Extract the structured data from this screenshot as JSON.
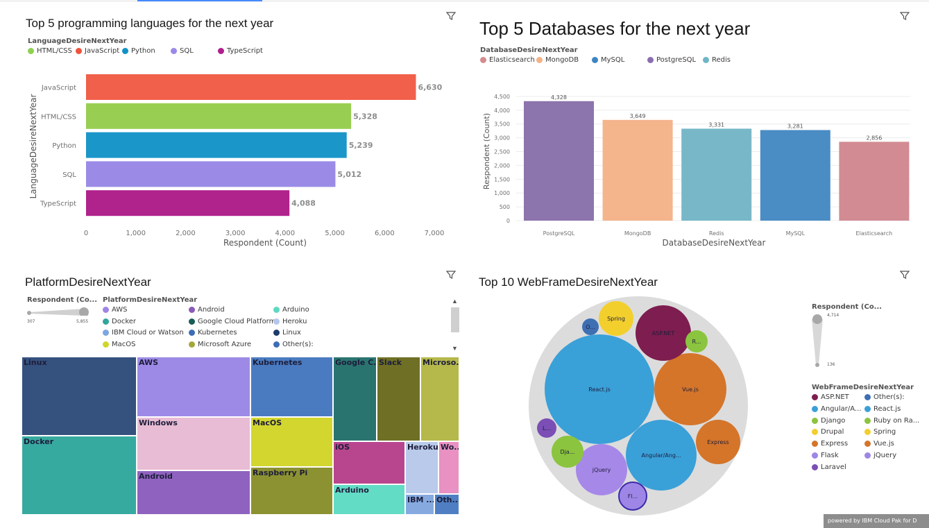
{
  "lang_chart": {
    "title": "Top 5 programming languages for the next year",
    "legend_title": "LanguageDesireNextYear",
    "legend": [
      {
        "label": "HTML/CSS",
        "color": "#8fd14f"
      },
      {
        "label": "JavaScript",
        "color": "#f0523c"
      },
      {
        "label": "Python",
        "color": "#1192c6"
      },
      {
        "label": "SQL",
        "color": "#9b88e8"
      },
      {
        "label": "TypeScript",
        "color": "#b01e8c"
      }
    ]
  },
  "db_chart": {
    "title": "Top 5 Databases for the next year",
    "legend_title": "DatabaseDesireNextYear",
    "legend": [
      {
        "label": "Elasticsearch",
        "color": "#d48c8f"
      },
      {
        "label": "MongoDB",
        "color": "#f4b285"
      },
      {
        "label": "MySQL",
        "color": "#3e85c2"
      },
      {
        "label": "PostgreSQL",
        "color": "#8a6db0"
      },
      {
        "label": "Redis",
        "color": "#6fb5c8"
      }
    ]
  },
  "platform_chart": {
    "title": "PlatformDesireNextYear",
    "size_legend_title": "Respondent (Co...",
    "size_min": "307",
    "size_max": "5,855",
    "legend_title": "PlatformDesireNextYear",
    "legend": [
      {
        "label": "AWS",
        "color": "#9d86e6"
      },
      {
        "label": "Android",
        "color": "#8a5ab8"
      },
      {
        "label": "Arduino",
        "color": "#5fd8c2"
      },
      {
        "label": "Docker",
        "color": "#31a59a"
      },
      {
        "label": "Google Cloud Platform",
        "color": "#175e57"
      },
      {
        "label": "Heroku",
        "color": "#b5c6ec"
      },
      {
        "label": "IBM Cloud or Watson",
        "color": "#7ea6e0"
      },
      {
        "label": "Kubernetes",
        "color": "#3d6db5"
      },
      {
        "label": "Linux",
        "color": "#1d3a6b"
      },
      {
        "label": "MacOS",
        "color": "#cfd62b"
      },
      {
        "label": "Microsoft Azure",
        "color": "#a3a83a"
      },
      {
        "label": "Other(s):",
        "color": "#3d6db5"
      }
    ],
    "cells": [
      {
        "label": "Linux",
        "color": "#35517e"
      },
      {
        "label": "Docker",
        "color": "#37aaa0"
      },
      {
        "label": "AWS",
        "color": "#9d8ae6"
      },
      {
        "label": "Windows",
        "color": "#e8bcd4"
      },
      {
        "label": "Android",
        "color": "#8f62bf"
      },
      {
        "label": "Kubernetes",
        "color": "#4a7bc0"
      },
      {
        "label": "MacOS",
        "color": "#d2d62e"
      },
      {
        "label": "Raspberry Pi",
        "color": "#8c9231"
      },
      {
        "label": "Google C...",
        "color": "#2a7470"
      },
      {
        "label": "Slack",
        "color": "#6f7025"
      },
      {
        "label": "Microso...",
        "color": "#b5b84a"
      },
      {
        "label": "iOS",
        "color": "#b8468e"
      },
      {
        "label": "Arduino",
        "color": "#63dcc6"
      },
      {
        "label": "Heroku",
        "color": "#b9caea"
      },
      {
        "label": "Wo...",
        "color": "#e891c2"
      },
      {
        "label": "IBM ...",
        "color": "#86aae0"
      },
      {
        "label": "Oth...",
        "color": "#4f7fc2"
      }
    ]
  },
  "webframe_chart": {
    "title": "Top 10 WebFrameDesireNextYear",
    "size_legend_title": "Respondent (Co...",
    "size_max": "4,714",
    "size_min": "136",
    "legend_title": "WebFrameDesireNextYear",
    "legend": [
      {
        "label": "ASP.NET",
        "color": "#7e1d4f"
      },
      {
        "label": "Other(s):",
        "color": "#3e6fb3"
      },
      {
        "label": "Angular/A...",
        "color": "#3aa0d8"
      },
      {
        "label": "React.js",
        "color": "#3aa0d8"
      },
      {
        "label": "Django",
        "color": "#8bc43e"
      },
      {
        "label": "Ruby on Ra...",
        "color": "#8bc43e"
      },
      {
        "label": "Drupal",
        "color": "#f2cf2d"
      },
      {
        "label": "Spring",
        "color": "#f2cf2d"
      },
      {
        "label": "Express",
        "color": "#d4752a"
      },
      {
        "label": "Vue.js",
        "color": "#d4752a"
      },
      {
        "label": "Flask",
        "color": "#9d86e6"
      },
      {
        "label": "jQuery",
        "color": "#9d86e6"
      },
      {
        "label": "Laravel",
        "color": "#7b4fb5"
      }
    ],
    "bubbles": [
      {
        "label": "React.js",
        "color": "#3aa0d8"
      },
      {
        "label": "Vue.js",
        "color": "#d4752a"
      },
      {
        "label": "Angular/Ang...",
        "color": "#3aa0d8"
      },
      {
        "label": "ASP.NET",
        "color": "#7e1d4f"
      },
      {
        "label": "jQuery",
        "color": "#a688e8"
      },
      {
        "label": "Express",
        "color": "#d4752a"
      },
      {
        "label": "Spring",
        "color": "#f2cf2d"
      },
      {
        "label": "Dja...",
        "color": "#8bc43e"
      },
      {
        "label": "Fl...",
        "color": "#9d86e6"
      },
      {
        "label": "L...",
        "color": "#7b4fb5"
      },
      {
        "label": "R...",
        "color": "#8bc43e"
      },
      {
        "label": "O...",
        "color": "#3e6fb3"
      }
    ]
  },
  "footer": {
    "powered": "powered by IBM Cloud Pak for D"
  },
  "chart_data": [
    {
      "type": "bar",
      "orientation": "horizontal",
      "title": "Top 5 programming languages for the next year",
      "xlabel": "Respondent (Count)",
      "ylabel": "LanguageDesireNextYear",
      "categories": [
        "JavaScript",
        "HTML/CSS",
        "Python",
        "SQL",
        "TypeScript"
      ],
      "values": [
        6630,
        5328,
        5239,
        5012,
        4088
      ],
      "value_labels": [
        "6,630",
        "5,328",
        "5,239",
        "5,012",
        "4,088"
      ],
      "colors": [
        "#f0604a",
        "#98ce52",
        "#1a96c9",
        "#9b8be6",
        "#b0228c"
      ],
      "xlim": [
        0,
        7000
      ],
      "xticks": [
        "0",
        "1,000",
        "2,000",
        "3,000",
        "4,000",
        "5,000",
        "6,000",
        "7,000"
      ],
      "legend_placement": "top-left"
    },
    {
      "type": "bar",
      "title": "Top 5 Databases for the next year",
      "xlabel": "DatabaseDesireNextYear",
      "ylabel": "Respondent (Count)",
      "categories": [
        "PostgreSQL",
        "MongoDB",
        "Redis",
        "MySQL",
        "Elasticsearch"
      ],
      "values": [
        4328,
        3649,
        3331,
        3281,
        2856
      ],
      "value_labels": [
        "4,328",
        "3,649",
        "3,331",
        "3,281",
        "2,856"
      ],
      "colors": [
        "#8c74ad",
        "#f4b48c",
        "#78b7c8",
        "#4a8cc4",
        "#d28b92"
      ],
      "ylim": [
        0,
        4800
      ],
      "yticks": [
        "0",
        "500",
        "1,000",
        "1,500",
        "2,000",
        "2,500",
        "3,000",
        "3,500",
        "4,000",
        "4,500"
      ],
      "grid": true,
      "legend_placement": "top-left"
    }
  ]
}
